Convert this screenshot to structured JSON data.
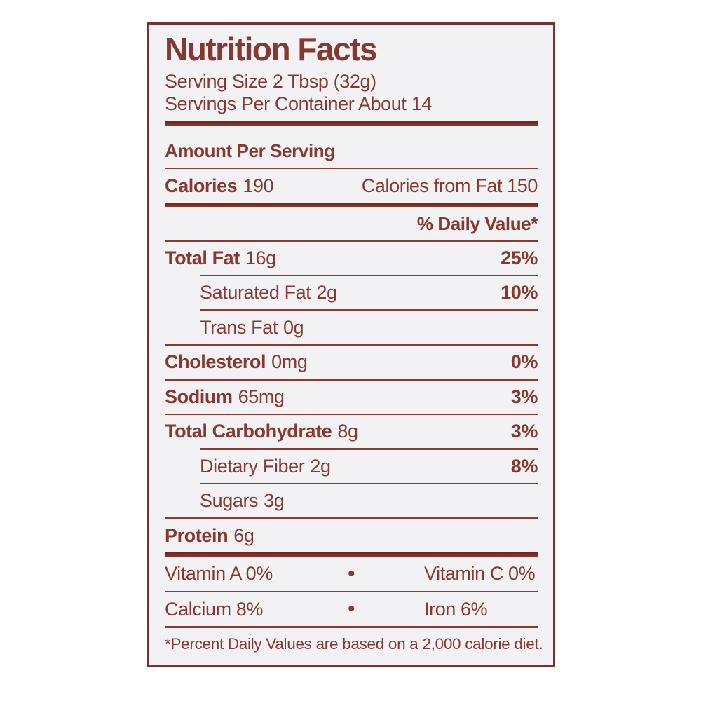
{
  "label": {
    "title": "Nutrition Facts",
    "serving_size": "Serving Size 2 Tbsp (32g)",
    "servings_per_container": "Servings Per Container About 14",
    "amount_per_serving": "Amount Per Serving",
    "calories_label": "Calories",
    "calories_value": "190",
    "calories_from_fat": "Calories from Fat 150",
    "daily_value_header": "% Daily Value*",
    "nutrients": [
      {
        "name": "Total Fat",
        "amount": "16g",
        "dv": "25%"
      },
      {
        "name": "Saturated Fat",
        "amount": "2g",
        "dv": "10%"
      },
      {
        "name": "Trans Fat",
        "amount": "0g",
        "dv": ""
      },
      {
        "name": "Cholesterol",
        "amount": "0mg",
        "dv": "0%"
      },
      {
        "name": "Sodium",
        "amount": "65mg",
        "dv": "3%"
      },
      {
        "name": "Total Carbohydrate",
        "amount": "8g",
        "dv": "3%"
      },
      {
        "name": "Dietary Fiber",
        "amount": "2g",
        "dv": "8%"
      },
      {
        "name": "Sugars",
        "amount": "3g",
        "dv": ""
      },
      {
        "name": "Protein",
        "amount": "6g",
        "dv": ""
      }
    ],
    "vitamins": [
      {
        "left": "Vitamin A 0%",
        "bullet": "•",
        "right": "Vitamin C 0%"
      },
      {
        "left": "Calcium 8%",
        "bullet": "•",
        "right": "Iron 6%"
      }
    ],
    "footnote": "*Percent Daily Values are based on a 2,000 calorie diet."
  },
  "colors": {
    "text_maroon": "#873931",
    "rule_maroon": "#8a3a31",
    "thick_rule": "#7c2b23",
    "panel_border": "#79332d",
    "panel_background": "#f2f2f5",
    "page_background": "#ffffff"
  }
}
